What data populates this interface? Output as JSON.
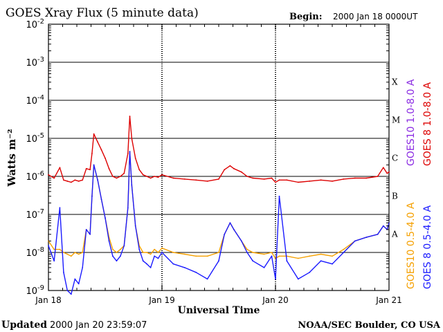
{
  "header": {
    "title": "GOES Xray Flux (5 minute data)",
    "begin_label": "Begin:",
    "begin_value": "2000 Jan 18 0000UT"
  },
  "footer": {
    "updated_label": "Updated",
    "updated_value": "2000 Jan 20 23:59:07",
    "credit": "NOAA/SEC Boulder, CO USA"
  },
  "colors": {
    "goes8_long": "#dd0000",
    "goes8_short": "#1a1aff",
    "goes10_long": "#8a2be2",
    "goes10_short": "#f5a000"
  },
  "chart_data": {
    "type": "line",
    "title": "GOES Xray Flux (5 minute data)",
    "xlabel": "Universal Time",
    "ylabel": "Watts m⁻²",
    "y_scale": "log",
    "ylim": [
      1e-09,
      0.01
    ],
    "xlim": [
      "2000-01-18 00:00",
      "2000-01-21 00:00"
    ],
    "x_ticks": [
      {
        "value": "2000-01-18 00:00",
        "label": "Jan 18"
      },
      {
        "value": "2000-01-19 00:00",
        "label": "Jan 19"
      },
      {
        "value": "2000-01-20 00:00",
        "label": "Jan 20"
      },
      {
        "value": "2000-01-21 00:00",
        "label": "Jan 21"
      }
    ],
    "y_ticks": [
      {
        "value": 1e-09,
        "base": "10",
        "exp": "-9"
      },
      {
        "value": 1e-08,
        "base": "10",
        "exp": "-8"
      },
      {
        "value": 1e-07,
        "base": "10",
        "exp": "-7"
      },
      {
        "value": 1e-06,
        "base": "10",
        "exp": "-6"
      },
      {
        "value": 1e-05,
        "base": "10",
        "exp": "-5"
      },
      {
        "value": 0.0001,
        "base": "10",
        "exp": "-4"
      },
      {
        "value": 0.001,
        "base": "10",
        "exp": "-3"
      },
      {
        "value": 0.01,
        "base": "10",
        "exp": "-2"
      }
    ],
    "flare_classes": [
      {
        "label": "A",
        "value": 1e-08
      },
      {
        "label": "B",
        "value": 1e-07
      },
      {
        "label": "C",
        "value": 1e-06
      },
      {
        "label": "M",
        "value": 1e-05
      },
      {
        "label": "X",
        "value": 0.0001
      }
    ],
    "grid": "horizontal solid at each decade; vertical dotted at each day",
    "legend_position": "right, vertical text",
    "series": [
      {
        "name": "GOES 8 1.0-8.0 A",
        "color": "#dd0000",
        "x": [
          "2000-01-18 00:00",
          "2000-01-18 01:12",
          "2000-01-18 02:24",
          "2000-01-18 03:12",
          "2000-01-18 04:00",
          "2000-01-18 04:48",
          "2000-01-18 05:36",
          "2000-01-18 06:24",
          "2000-01-18 07:12",
          "2000-01-18 08:00",
          "2000-01-18 08:48",
          "2000-01-18 09:12",
          "2000-01-18 09:36",
          "2000-01-18 10:24",
          "2000-01-18 11:12",
          "2000-01-18 12:00",
          "2000-01-18 12:48",
          "2000-01-18 13:36",
          "2000-01-18 14:24",
          "2000-01-18 15:12",
          "2000-01-18 16:00",
          "2000-01-18 16:48",
          "2000-01-18 17:12",
          "2000-01-18 17:36",
          "2000-01-18 18:24",
          "2000-01-18 19:12",
          "2000-01-18 20:00",
          "2000-01-18 20:48",
          "2000-01-18 21:36",
          "2000-01-18 22:24",
          "2000-01-18 23:12",
          "2000-01-19 00:00",
          "2000-01-19 02:24",
          "2000-01-19 04:48",
          "2000-01-19 07:12",
          "2000-01-19 09:36",
          "2000-01-19 12:00",
          "2000-01-19 13:12",
          "2000-01-19 14:24",
          "2000-01-19 15:12",
          "2000-01-19 16:48",
          "2000-01-19 18:00",
          "2000-01-19 19:12",
          "2000-01-19 21:36",
          "2000-01-19 23:12",
          "2000-01-20 00:00",
          "2000-01-20 00:48",
          "2000-01-20 02:24",
          "2000-01-20 04:48",
          "2000-01-20 07:12",
          "2000-01-20 09:36",
          "2000-01-20 12:00",
          "2000-01-20 14:24",
          "2000-01-20 16:48",
          "2000-01-20 19:12",
          "2000-01-20 21:36",
          "2000-01-20 22:48",
          "2000-01-20 23:36",
          "2000-01-21 00:00"
        ],
        "values": [
          1.1e-06,
          9e-07,
          1.7e-06,
          8e-07,
          7.5e-07,
          7e-07,
          8e-07,
          7.5e-07,
          8e-07,
          1.6e-06,
          1.5e-06,
          4e-06,
          1.3e-05,
          8e-06,
          5e-06,
          3e-06,
          1.6e-06,
          1e-06,
          9e-07,
          1e-06,
          1.2e-06,
          4e-06,
          3.8e-05,
          1e-05,
          3e-06,
          1.5e-06,
          1.1e-06,
          1e-06,
          9e-07,
          1e-06,
          9.5e-07,
          1.1e-06,
          9e-07,
          8.5e-07,
          8e-07,
          7.5e-07,
          8.5e-07,
          1.5e-06,
          1.9e-06,
          1.6e-06,
          1.3e-06,
          1e-06,
          9e-07,
          8.5e-07,
          9e-07,
          7e-07,
          8e-07,
          8e-07,
          7e-07,
          7.5e-07,
          8e-07,
          7.5e-07,
          8.5e-07,
          9e-07,
          9e-07,
          1e-06,
          1.7e-06,
          1.2e-06,
          1.3e-06
        ]
      },
      {
        "name": "GOES 8 0.5-4.0 A",
        "color": "#1a1aff",
        "x": [
          "2000-01-18 00:00",
          "2000-01-18 01:12",
          "2000-01-18 02:24",
          "2000-01-18 03:12",
          "2000-01-18 04:00",
          "2000-01-18 04:48",
          "2000-01-18 05:36",
          "2000-01-18 06:24",
          "2000-01-18 07:12",
          "2000-01-18 08:00",
          "2000-01-18 08:48",
          "2000-01-18 09:12",
          "2000-01-18 09:36",
          "2000-01-18 10:24",
          "2000-01-18 11:12",
          "2000-01-18 12:00",
          "2000-01-18 12:48",
          "2000-01-18 13:36",
          "2000-01-18 14:24",
          "2000-01-18 15:12",
          "2000-01-18 16:00",
          "2000-01-18 16:48",
          "2000-01-18 17:12",
          "2000-01-18 17:36",
          "2000-01-18 18:24",
          "2000-01-18 19:12",
          "2000-01-18 20:00",
          "2000-01-18 20:48",
          "2000-01-18 21:36",
          "2000-01-18 22:24",
          "2000-01-18 23:12",
          "2000-01-19 00:00",
          "2000-01-19 02:24",
          "2000-01-19 04:48",
          "2000-01-19 07:12",
          "2000-01-19 09:36",
          "2000-01-19 12:00",
          "2000-01-19 13:12",
          "2000-01-19 14:24",
          "2000-01-19 15:12",
          "2000-01-19 16:48",
          "2000-01-19 18:00",
          "2000-01-19 19:12",
          "2000-01-19 21:36",
          "2000-01-19 23:12",
          "2000-01-20 00:00",
          "2000-01-20 00:48",
          "2000-01-20 02:24",
          "2000-01-20 04:48",
          "2000-01-20 07:12",
          "2000-01-20 09:36",
          "2000-01-20 12:00",
          "2000-01-20 14:24",
          "2000-01-20 16:48",
          "2000-01-20 19:12",
          "2000-01-20 21:36",
          "2000-01-20 22:48",
          "2000-01-20 23:36",
          "2000-01-21 00:00"
        ],
        "values": [
          1.5e-08,
          6e-09,
          1.5e-07,
          3e-09,
          1e-09,
          8e-10,
          2e-09,
          1.5e-09,
          4e-09,
          4e-08,
          3e-08,
          3e-07,
          2e-06,
          8e-07,
          2.5e-07,
          8e-08,
          2e-08,
          8e-09,
          6e-09,
          8e-09,
          1.5e-08,
          1.5e-07,
          4.5e-06,
          6e-07,
          5e-08,
          1.2e-08,
          6e-09,
          5e-09,
          4e-09,
          8e-09,
          7e-09,
          1e-08,
          5e-09,
          4e-09,
          3e-09,
          2e-09,
          6e-09,
          3e-08,
          6e-08,
          4e-08,
          2e-08,
          1e-08,
          6e-09,
          4e-09,
          8e-09,
          2e-09,
          3e-07,
          6e-09,
          2e-09,
          3e-09,
          6e-09,
          5e-09,
          1e-08,
          2e-08,
          2.5e-08,
          3e-08,
          5e-08,
          4e-08,
          6e-08
        ]
      },
      {
        "name": "GOES10 1.0-8.0 A",
        "color": "#8a2be2",
        "x": [],
        "values": []
      },
      {
        "name": "GOES10 0.5-4.0 A",
        "color": "#f5a000",
        "x": [
          "2000-01-18 00:00",
          "2000-01-18 01:12",
          "2000-01-18 02:24",
          "2000-01-18 03:12",
          "2000-01-18 04:00",
          "2000-01-18 04:48",
          "2000-01-18 05:36",
          "2000-01-18 06:24",
          "2000-01-18 07:12",
          "2000-01-18 08:00",
          "2000-01-18 08:48",
          "2000-01-18 09:12",
          "2000-01-18 09:36",
          "2000-01-18 10:24",
          "2000-01-18 11:12",
          "2000-01-18 12:00",
          "2000-01-18 12:48",
          "2000-01-18 13:36",
          "2000-01-18 14:24",
          "2000-01-18 15:12",
          "2000-01-18 16:00",
          "2000-01-18 16:48",
          "2000-01-18 17:12",
          "2000-01-18 17:36",
          "2000-01-18 18:24",
          "2000-01-18 19:12",
          "2000-01-18 20:00",
          "2000-01-18 20:48",
          "2000-01-18 21:36",
          "2000-01-18 22:24",
          "2000-01-18 23:12",
          "2000-01-19 00:00",
          "2000-01-19 02:24",
          "2000-01-19 04:48",
          "2000-01-19 07:12",
          "2000-01-19 09:36",
          "2000-01-19 12:00",
          "2000-01-19 13:12",
          "2000-01-19 14:24",
          "2000-01-19 15:12",
          "2000-01-19 16:48",
          "2000-01-19 18:00",
          "2000-01-19 19:12",
          "2000-01-19 21:36",
          "2000-01-19 23:12",
          "2000-01-20 00:00",
          "2000-01-20 00:48",
          "2000-01-20 02:24",
          "2000-01-20 04:48",
          "2000-01-20 07:12",
          "2000-01-20 09:36",
          "2000-01-20 12:00",
          "2000-01-20 14:24",
          "2000-01-20 16:48",
          "2000-01-20 19:12",
          "2000-01-20 21:36",
          "2000-01-20 22:48",
          "2000-01-20 23:36",
          "2000-01-21 00:00"
        ],
        "values": [
          2e-08,
          1.2e-08,
          1.2e-08,
          1e-08,
          9e-09,
          8e-09,
          1e-08,
          9e-09,
          1e-08,
          4e-08,
          3e-08,
          3e-07,
          2e-06,
          8e-07,
          2.5e-07,
          8e-08,
          2.5e-08,
          1.2e-08,
          1e-08,
          1.2e-08,
          1.5e-08,
          1.5e-07,
          4.5e-06,
          6e-07,
          5e-08,
          1.5e-08,
          1e-08,
          1e-08,
          9e-09,
          1.2e-08,
          1e-08,
          1.3e-08,
          1e-08,
          9e-09,
          8e-09,
          8e-09,
          1e-08,
          3e-08,
          6e-08,
          4e-08,
          2e-08,
          1.2e-08,
          1e-08,
          9e-09,
          1e-08,
          7e-09,
          8e-09,
          8e-09,
          7e-09,
          8e-09,
          9e-09,
          8e-09,
          1.2e-08,
          2e-08,
          2.5e-08,
          3e-08,
          5e-08,
          4e-08,
          6e-08
        ]
      }
    ]
  }
}
